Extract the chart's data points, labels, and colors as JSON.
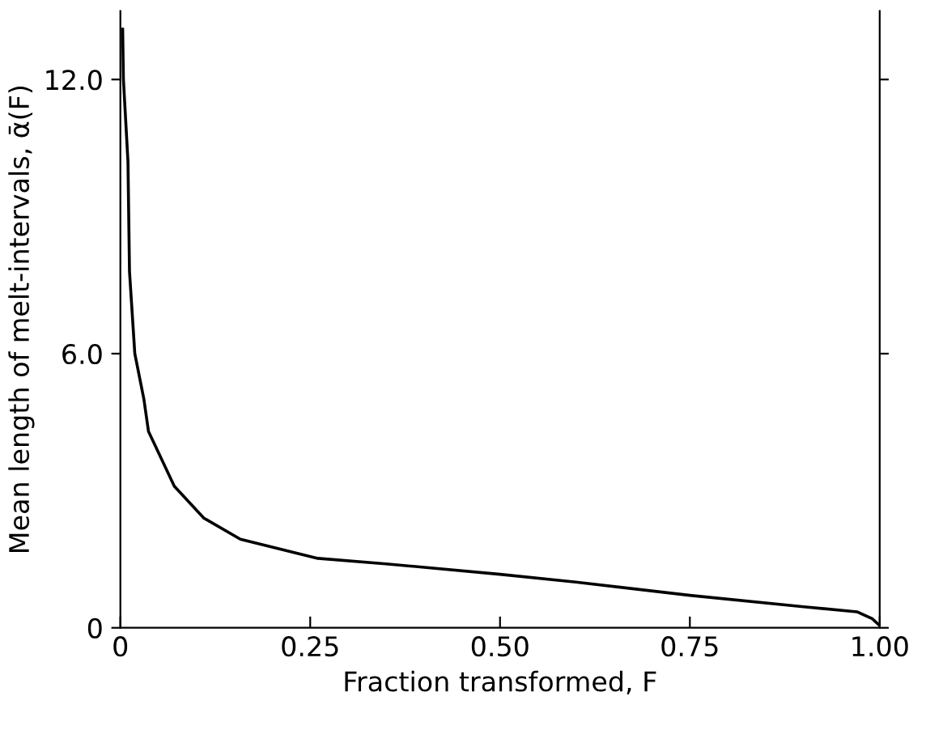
{
  "chart_data": {
    "type": "line",
    "xlabel": "Fraction transformed, F",
    "ylabel": "Mean length of melt-intervals, ᾱ(F)",
    "x": [
      0.003,
      0.004,
      0.01,
      0.012,
      0.019,
      0.031,
      0.037,
      0.071,
      0.11,
      0.158,
      0.26,
      0.35,
      0.5,
      0.6,
      0.75,
      0.9,
      0.97,
      0.99,
      1.0
    ],
    "series": [
      {
        "color": "#000000",
        "values": [
          13.1,
          12.0,
          10.2,
          7.8,
          6.0,
          5.0,
          4.3,
          3.1,
          2.4,
          1.94,
          1.52,
          1.4,
          1.17,
          1.0,
          0.71,
          0.46,
          0.35,
          0.2,
          0.05
        ]
      }
    ],
    "xlim": [
      0,
      1.0
    ],
    "ylim": [
      0,
      13.5
    ],
    "xticks": [
      0,
      0.25,
      {
        "value": 0.5,
        "label": "0.50"
      },
      0.75,
      {
        "value": 1.0,
        "label": "1.00"
      }
    ],
    "yticks": [
      0,
      {
        "value": 6,
        "label": "6.0"
      },
      {
        "value": 12,
        "label": "12.0"
      }
    ],
    "grid": false,
    "marker": "none",
    "line_style": "solid"
  }
}
